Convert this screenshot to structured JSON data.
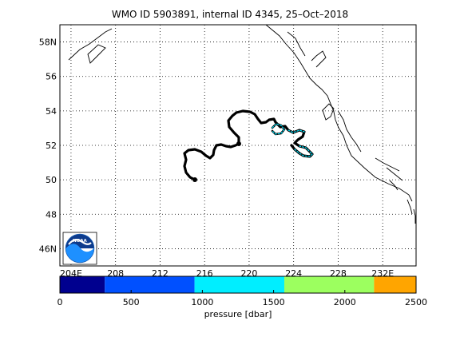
{
  "title": "WMO ID 5903891, internal ID 4345, 25–Oct–2018",
  "map": {
    "lon_ticks": [
      "204E",
      "208",
      "212",
      "216",
      "220",
      "224",
      "228",
      "232E"
    ],
    "lat_ticks": [
      "46N",
      "48",
      "50",
      "52",
      "54",
      "56",
      "58N"
    ],
    "lon_range": [
      203,
      235
    ],
    "lat_range": [
      45,
      59
    ],
    "grid": "dotted",
    "logo": "noaa-logo",
    "trajectory_color": "#000000",
    "highlight_color": "#00e5ff"
  },
  "colorbar": {
    "label": "pressure [dbar]",
    "ticks": [
      "0",
      "500",
      "1000",
      "1500",
      "2000",
      "2500"
    ],
    "range": [
      0,
      2500
    ],
    "segments": [
      {
        "from": 0,
        "to": 315,
        "color": "#00008f"
      },
      {
        "from": 315,
        "to": 945,
        "color": "#0050ff"
      },
      {
        "from": 945,
        "to": 1575,
        "color": "#00eeff"
      },
      {
        "from": 1575,
        "to": 2205,
        "color": "#9cff5f"
      },
      {
        "from": 2205,
        "to": 2500,
        "color": "#ffa500"
      }
    ]
  }
}
